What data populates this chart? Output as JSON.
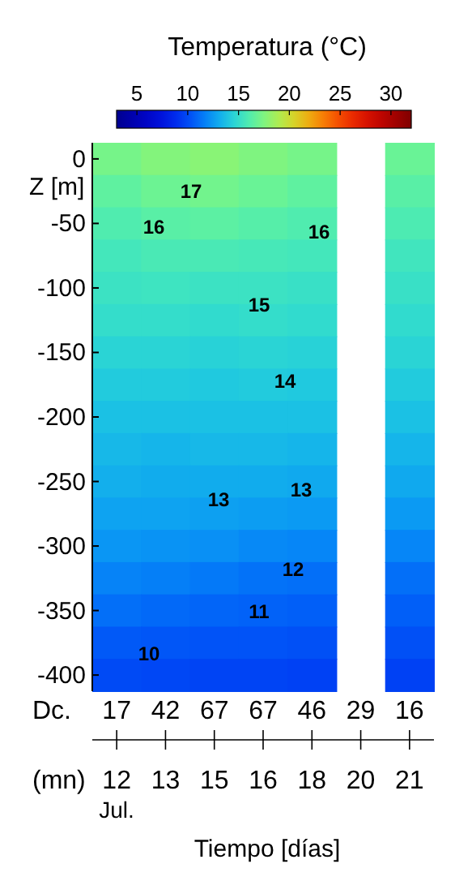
{
  "chart_data": {
    "type": "heatmap",
    "title": "Temperatura (°C)",
    "ylabel": "Z [m]",
    "categories": [
      "17\n12",
      "42\n13",
      "67\n15",
      "67\n16",
      "46\n18",
      "29\n20",
      "16\n21"
    ],
    "y_categories": [
      "0",
      null,
      "-50",
      null,
      "-100",
      null,
      "-150",
      null,
      "-200",
      null,
      "-250",
      null,
      "-300",
      null,
      "-350",
      null,
      "-400"
    ],
    "clim": [
      3,
      32
    ],
    "cticks": [
      5,
      10,
      15,
      20,
      25,
      30
    ],
    "cells": [
      [
        17.2,
        17.6,
        17.8,
        17.5,
        17.2,
        null,
        16.8
      ],
      [
        16.5,
        16.9,
        17.1,
        16.8,
        16.5,
        null,
        16.3
      ],
      [
        16.0,
        16.3,
        16.4,
        16.2,
        16.0,
        null,
        15.9
      ],
      [
        15.6,
        15.8,
        15.8,
        15.7,
        15.6,
        null,
        15.5
      ],
      [
        15.3,
        15.4,
        15.3,
        15.3,
        15.2,
        null,
        15.2
      ],
      [
        15.0,
        15.0,
        14.9,
        15.0,
        14.9,
        null,
        14.9
      ],
      [
        14.6,
        14.6,
        14.5,
        14.6,
        14.5,
        null,
        14.6
      ],
      [
        14.2,
        14.2,
        14.1,
        14.2,
        14.1,
        null,
        14.2
      ],
      [
        13.8,
        13.8,
        13.8,
        13.8,
        13.8,
        null,
        13.8
      ],
      [
        13.5,
        13.4,
        13.5,
        13.5,
        13.4,
        null,
        13.4
      ],
      [
        13.2,
        13.1,
        13.1,
        13.1,
        13.0,
        null,
        13.0
      ],
      [
        12.8,
        12.8,
        12.7,
        12.6,
        12.5,
        null,
        12.5
      ],
      [
        12.4,
        12.3,
        12.2,
        12.0,
        11.9,
        null,
        11.9
      ],
      [
        11.8,
        11.7,
        11.5,
        11.3,
        11.2,
        null,
        11.2
      ],
      [
        11.2,
        11.0,
        10.9,
        10.8,
        10.7,
        null,
        10.7
      ],
      [
        10.5,
        10.4,
        10.3,
        10.3,
        10.2,
        null,
        10.2
      ],
      [
        10.0,
        9.9,
        9.8,
        9.8,
        9.7,
        null,
        9.7
      ]
    ],
    "annotations": [
      "17",
      "16",
      "16",
      "15",
      "14",
      "13",
      "13",
      "12",
      "11",
      "10",
      "Dc.",
      "(mn)",
      "Jul.",
      "Tiempo [días]"
    ]
  }
}
